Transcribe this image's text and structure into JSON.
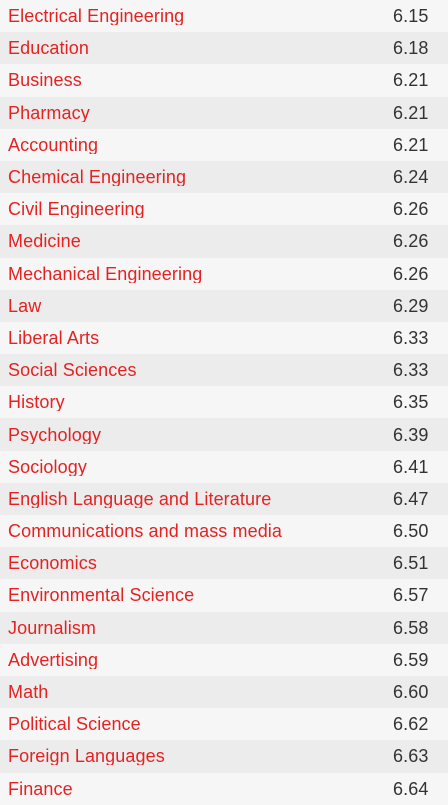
{
  "colors": {
    "label": "#e52222",
    "value": "#333333",
    "row_even": "#ececec",
    "row_odd": "#f6f6f6"
  },
  "rows": [
    {
      "label": "Electrical Engineering",
      "value": "6.15"
    },
    {
      "label": "Education",
      "value": "6.18"
    },
    {
      "label": "Business",
      "value": "6.21"
    },
    {
      "label": "Pharmacy",
      "value": "6.21"
    },
    {
      "label": "Accounting",
      "value": "6.21"
    },
    {
      "label": "Chemical Engineering",
      "value": "6.24"
    },
    {
      "label": "Civil Engineering",
      "value": "6.26"
    },
    {
      "label": "Medicine",
      "value": "6.26"
    },
    {
      "label": "Mechanical Engineering",
      "value": "6.26"
    },
    {
      "label": "Law",
      "value": "6.29"
    },
    {
      "label": "Liberal Arts",
      "value": "6.33"
    },
    {
      "label": "Social Sciences",
      "value": "6.33"
    },
    {
      "label": "History",
      "value": "6.35"
    },
    {
      "label": "Psychology",
      "value": "6.39"
    },
    {
      "label": "Sociology",
      "value": "6.41"
    },
    {
      "label": "English Language and Literature",
      "value": "6.47"
    },
    {
      "label": "Communications and mass media",
      "value": "6.50"
    },
    {
      "label": "Economics",
      "value": "6.51"
    },
    {
      "label": "Environmental Science",
      "value": "6.57"
    },
    {
      "label": "Journalism",
      "value": "6.58"
    },
    {
      "label": "Advertising",
      "value": "6.59"
    },
    {
      "label": "Math",
      "value": "6.60"
    },
    {
      "label": "Political Science",
      "value": "6.62"
    },
    {
      "label": "Foreign Languages",
      "value": "6.63"
    },
    {
      "label": "Finance",
      "value": "6.64"
    }
  ]
}
